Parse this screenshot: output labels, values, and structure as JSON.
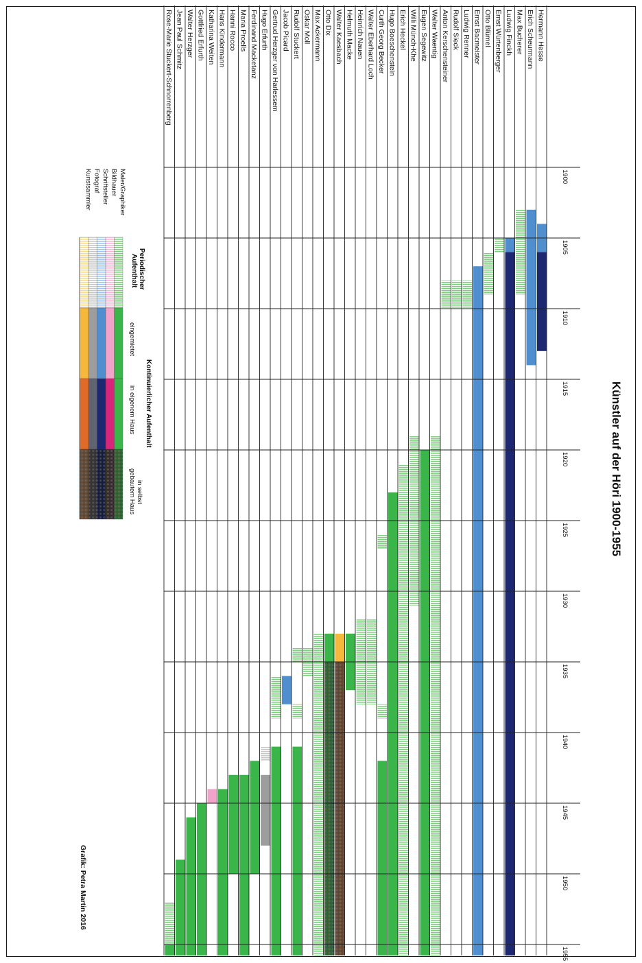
{
  "chart_data": {
    "type": "gantt",
    "title": "Künstler auf der Höri 1900-1955",
    "credit": "Grafik: Petra Martin 2016",
    "x_axis": {
      "ticks": [
        1900,
        1905,
        1910,
        1915,
        1920,
        1925,
        1930,
        1935,
        1940,
        1945,
        1950,
        1955
      ],
      "range": [
        1900,
        1956
      ]
    },
    "colors": {
      "Maler/Graphiker": {
        "periodic": "#7ccf7c",
        "rented": "#3ab54a",
        "own_house": "#3ab54a",
        "self_built": "#1f6b2a"
      },
      "Bildhauer": {
        "periodic": "#f5b8d6",
        "rented": "#f2a3c9",
        "own_house": "#d6257a",
        "self_built": "#3a2a30"
      },
      "Schriftsteller": {
        "periodic": "#9ec6ec",
        "rented": "#4f8fd0",
        "own_house": "#1c2870",
        "self_built": "#141a4a"
      },
      "Fotograf": {
        "periodic": "#c8c8c8",
        "rented": "#9d9d9d",
        "own_house": "#5f6470",
        "self_built": "#333333"
      },
      "Kunstsammler": {
        "periodic": "#f8dc8e",
        "rented": "#f6b83a",
        "own_house": "#e06a28",
        "self_built": "#6b4326"
      }
    },
    "legend": {
      "categories": [
        "Maler/Graphiker",
        "Bildhauer",
        "Schriftsteller",
        "Fotograf",
        "Kunstsammler"
      ],
      "periodic_header": "Periodischer Aufenthalt",
      "continuous_header": "Kontinuierlicher Aufenthalt",
      "rented_label": "eingemietet",
      "own_label": "in eigenem Haus",
      "self_built_label": "in selbst gebautem Haus"
    },
    "rows": [
      {
        "name": "Hermann Hesse",
        "cat": "Schriftsteller",
        "segments": [
          [
            1904,
            1906,
            "rented"
          ],
          [
            1906,
            1913,
            "own_house"
          ]
        ]
      },
      {
        "name": "Erich Scheurmann",
        "cat": "Schriftsteller",
        "segments": [
          [
            1903,
            1914,
            "rented"
          ]
        ]
      },
      {
        "name": "Max Bucherer",
        "cat": "Maler/Graphiker",
        "segments": [
          [
            1903,
            1909,
            "periodic"
          ]
        ]
      },
      {
        "name": "Ludwig Finckh",
        "cat": "Schriftsteller",
        "segments": [
          [
            1905,
            1906,
            "rented"
          ],
          [
            1906,
            1956,
            "own_house"
          ]
        ]
      },
      {
        "name": "Ernst Würtenberger",
        "cat": "Maler/Graphiker",
        "segments": [
          [
            1905,
            1906,
            "periodic"
          ]
        ]
      },
      {
        "name": "Otto Blümel",
        "cat": "Maler/Graphiker",
        "segments": [
          [
            1906,
            1909,
            "periodic"
          ]
        ]
      },
      {
        "name": "Ernst Bacmeister",
        "cat": "Schriftsteller",
        "segments": [
          [
            1907,
            1956,
            "rented"
          ]
        ]
      },
      {
        "name": "Ludwig Renner",
        "cat": "Maler/Graphiker",
        "segments": [
          [
            1908,
            1910,
            "periodic"
          ]
        ]
      },
      {
        "name": "Rudolf Sieck",
        "cat": "Maler/Graphiker",
        "segments": [
          [
            1908,
            1910,
            "periodic"
          ]
        ]
      },
      {
        "name": "Anton Kerschensteiner",
        "cat": "Maler/Graphiker",
        "segments": [
          [
            1908,
            1910,
            "periodic"
          ]
        ]
      },
      {
        "name": "Walter Waentig",
        "cat": "Maler/Graphiker",
        "segments": [
          [
            1919,
            1956,
            "periodic"
          ]
        ]
      },
      {
        "name": "Eugen Segewitz",
        "cat": "Maler/Graphiker",
        "segments": [
          [
            1920,
            1956,
            "rented"
          ]
        ]
      },
      {
        "name": "Willi Münch-Khe",
        "cat": "Maler/Graphiker",
        "segments": [
          [
            1919,
            1931,
            "periodic"
          ]
        ]
      },
      {
        "name": "Erich Heckel",
        "cat": "Maler/Graphiker",
        "segments": [
          [
            1921,
            1956,
            "periodic"
          ]
        ]
      },
      {
        "name": "Hugo Boeschenstein",
        "cat": "Maler/Graphiker",
        "segments": [
          [
            1923,
            1956,
            "rented"
          ]
        ]
      },
      {
        "name": "Curth Georg Becker",
        "cat": "Maler/Graphiker",
        "segments": [
          [
            1926,
            1927,
            "periodic"
          ],
          [
            1938,
            1939,
            "periodic"
          ],
          [
            1942,
            1956,
            "rented"
          ]
        ]
      },
      {
        "name": "Walter Eberhard Loch",
        "cat": "Maler/Graphiker",
        "segments": [
          [
            1932,
            1938,
            "periodic"
          ]
        ]
      },
      {
        "name": "Heinrich Nauen",
        "cat": "Maler/Graphiker",
        "segments": [
          [
            1932,
            1938,
            "periodic"
          ]
        ]
      },
      {
        "name": "Helmuth Macke",
        "cat": "Maler/Graphiker",
        "segments": [
          [
            1933,
            1937,
            "rented"
          ]
        ]
      },
      {
        "name": "Walter Kaesbach",
        "cat": "Kunstsammler",
        "segments": [
          [
            1933,
            1935,
            "rented"
          ],
          [
            1935,
            1956,
            "self_built"
          ]
        ]
      },
      {
        "name": "Otto Dix",
        "cat": "Maler/Graphiker",
        "segments": [
          [
            1933,
            1935,
            "rented"
          ],
          [
            1935,
            1956,
            "self_built"
          ]
        ]
      },
      {
        "name": "Max Ackermann",
        "cat": "Maler/Graphiker",
        "segments": [
          [
            1933,
            1956,
            "periodic"
          ]
        ]
      },
      {
        "name": "Oskar Moll",
        "cat": "Maler/Graphiker",
        "segments": [
          [
            1934,
            1936,
            "periodic"
          ]
        ]
      },
      {
        "name": "Rudolf Stuckert",
        "cat": "Maler/Graphiker",
        "segments": [
          [
            1934,
            1935,
            "periodic"
          ],
          [
            1938,
            1939,
            "periodic"
          ],
          [
            1941,
            1956,
            "rented"
          ]
        ]
      },
      {
        "name": "Jacob Picard",
        "cat": "Schriftsteller",
        "segments": [
          [
            1936,
            1938,
            "rented"
          ]
        ]
      },
      {
        "name": "Gertrud Herzger von Harlessem",
        "cat": "Maler/Graphiker",
        "segments": [
          [
            1936,
            1939,
            "periodic"
          ],
          [
            1941,
            1956,
            "rented"
          ]
        ]
      },
      {
        "name": "Hugo Erfurth",
        "cat": "Fotograf",
        "segments": [
          [
            1941,
            1942,
            "periodic"
          ],
          [
            1943,
            1948,
            "rented"
          ]
        ]
      },
      {
        "name": "Ferdinand Macketanz",
        "cat": "Maler/Graphiker",
        "segments": [
          [
            1942,
            1950,
            "rented"
          ]
        ]
      },
      {
        "name": "Maria Proells",
        "cat": "Maler/Graphiker",
        "segments": [
          [
            1943,
            1956,
            "rented"
          ]
        ]
      },
      {
        "name": "Hanni Rocco",
        "cat": "Maler/Graphiker",
        "segments": [
          [
            1943,
            1950,
            "rented"
          ]
        ]
      },
      {
        "name": "Hans Kindermann",
        "cat": "Maler/Graphiker",
        "segments": [
          [
            1944,
            1956,
            "rented"
          ]
        ]
      },
      {
        "name": "Katharina Weiten",
        "cat": "Bildhauer",
        "segments": [
          [
            1944,
            1945,
            "rented"
          ]
        ]
      },
      {
        "name": "Gottfried Erfurth",
        "cat": "Maler/Graphiker",
        "segments": [
          [
            1945,
            1956,
            "rented"
          ]
        ]
      },
      {
        "name": "Walter Herzger",
        "cat": "Maler/Graphiker",
        "segments": [
          [
            1946,
            1956,
            "rented"
          ]
        ]
      },
      {
        "name": "Jean Paul Schmitz",
        "cat": "Maler/Graphiker",
        "segments": [
          [
            1949,
            1956,
            "rented"
          ]
        ]
      },
      {
        "name": "Rose-Marie Stuckert-Schnorrenberg",
        "cat": "Maler/Graphiker",
        "segments": [
          [
            1952,
            1955,
            "periodic"
          ],
          [
            1955,
            1956,
            "rented"
          ]
        ]
      }
    ]
  }
}
